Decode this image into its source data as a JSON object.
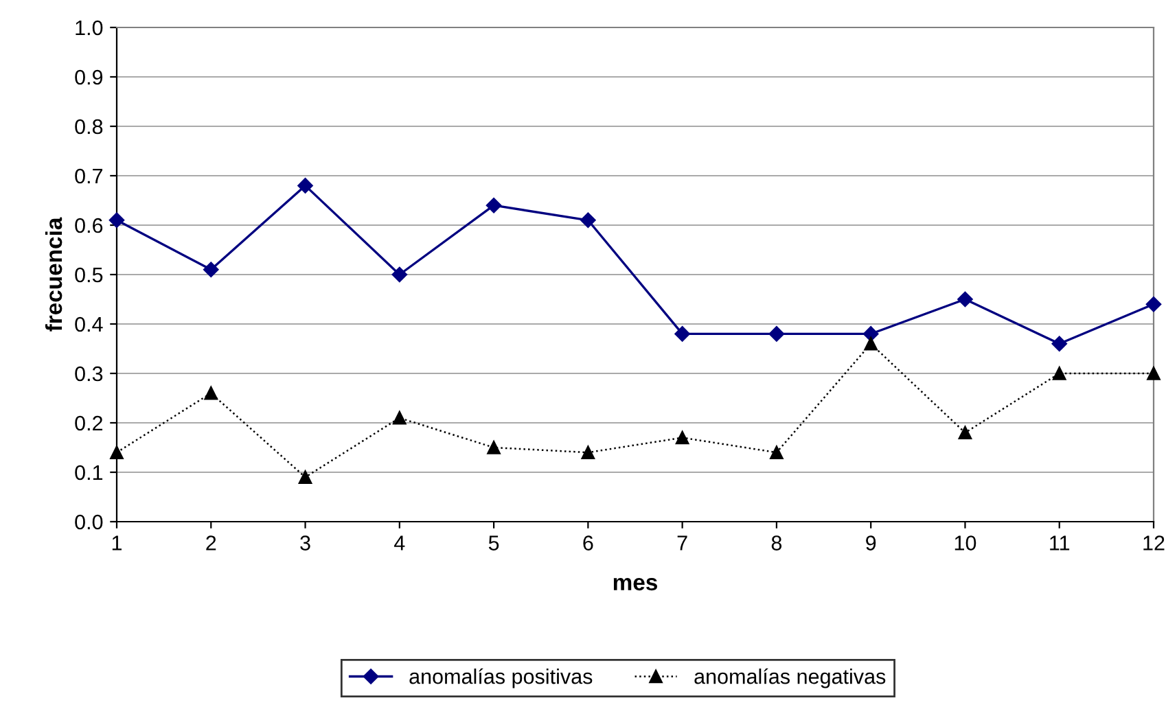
{
  "chart_data": {
    "type": "line",
    "xlabel": "mes",
    "ylabel": "frecuencia",
    "x": [
      1,
      2,
      3,
      4,
      5,
      6,
      7,
      8,
      9,
      10,
      11,
      12
    ],
    "series": [
      {
        "name": "anomalías positivas",
        "color": "#000080",
        "marker": "diamond",
        "line_style": "solid",
        "values": [
          0.61,
          0.51,
          0.68,
          0.5,
          0.64,
          0.61,
          0.38,
          0.38,
          0.38,
          0.45,
          0.36,
          0.44
        ]
      },
      {
        "name": "anomalías negativas",
        "color": "#000000",
        "marker": "triangle",
        "line_style": "dotted",
        "values": [
          0.14,
          0.26,
          0.09,
          0.21,
          0.15,
          0.14,
          0.17,
          0.14,
          0.36,
          0.18,
          0.3,
          0.3
        ]
      }
    ],
    "xlim": [
      1,
      12
    ],
    "xticks": [
      1,
      2,
      3,
      4,
      5,
      6,
      7,
      8,
      9,
      10,
      11,
      12
    ],
    "ylim": [
      0,
      1
    ],
    "yticks": [
      {
        "value": 0,
        "label": "0.0"
      },
      {
        "value": 0.1,
        "label": "0.1"
      },
      {
        "value": 0.2,
        "label": "0.2"
      },
      {
        "value": 0.3,
        "label": "0.3"
      },
      {
        "value": 0.4,
        "label": "0.4"
      },
      {
        "value": 0.5,
        "label": "0.5"
      },
      {
        "value": 0.6,
        "label": "0.6"
      },
      {
        "value": 0.7,
        "label": "0.7"
      },
      {
        "value": 0.8,
        "label": "0.8"
      },
      {
        "value": 0.9,
        "label": "0.9"
      },
      {
        "value": 1,
        "label": "1.0"
      }
    ],
    "grid": "y",
    "legend": "bottom"
  }
}
